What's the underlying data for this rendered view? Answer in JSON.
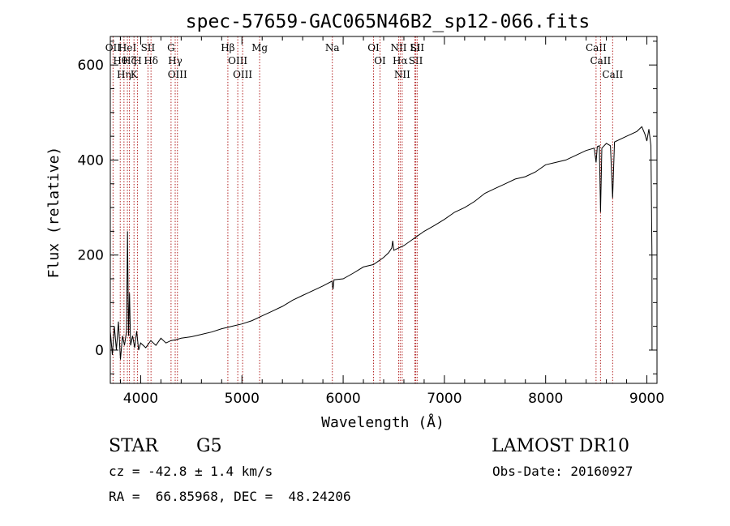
{
  "chart_data": {
    "type": "line",
    "title": "spec-57659-GAC065N46B2_sp12-066.fits",
    "xlabel": "Wavelength (Å)",
    "ylabel": "Flux (relative)",
    "xlim": [
      3700,
      9100
    ],
    "ylim": [
      -70,
      660
    ],
    "x_ticks": [
      4000,
      5000,
      6000,
      7000,
      8000,
      9000
    ],
    "x_tick_labels": [
      "4000",
      "5000",
      "6000",
      "7000",
      "8000",
      "9000"
    ],
    "y_ticks": [
      0,
      200,
      400,
      600
    ],
    "y_tick_labels": [
      "0",
      "200",
      "400",
      "600"
    ],
    "grid": false,
    "line_color": "#000000",
    "marker_color": "#b22222",
    "series": [
      {
        "x": [
          3700,
          3720,
          3740,
          3760,
          3780,
          3800,
          3820,
          3840,
          3860,
          3870,
          3880,
          3890,
          3900,
          3920,
          3940,
          3960,
          3980,
          4000,
          4050,
          4100,
          4150,
          4200,
          4250,
          4300,
          4350,
          4400,
          4500,
          4600,
          4700,
          4800,
          4900,
          5000,
          5100,
          5200,
          5300,
          5400,
          5500,
          5600,
          5700,
          5800,
          5890,
          5900,
          5910,
          6000,
          6100,
          6200,
          6300,
          6400,
          6450,
          6480,
          6490,
          6500,
          6550,
          6600,
          6700,
          6800,
          6900,
          7000,
          7100,
          7200,
          7300,
          7400,
          7500,
          7600,
          7700,
          7800,
          7900,
          8000,
          8100,
          8200,
          8300,
          8400,
          8480,
          8498,
          8510,
          8530,
          8542,
          8555,
          8600,
          8640,
          8662,
          8680,
          8700,
          8800,
          8900,
          8950,
          8980,
          9000,
          9020,
          9040,
          9050,
          9051,
          9055
        ],
        "y": [
          40,
          -10,
          50,
          0,
          60,
          -20,
          30,
          10,
          40,
          250,
          30,
          120,
          10,
          30,
          5,
          40,
          0,
          15,
          5,
          20,
          10,
          25,
          15,
          20,
          22,
          25,
          28,
          33,
          38,
          45,
          50,
          55,
          62,
          72,
          82,
          92,
          105,
          115,
          125,
          135,
          145,
          128,
          148,
          150,
          162,
          175,
          180,
          195,
          205,
          215,
          230,
          210,
          215,
          220,
          235,
          250,
          262,
          275,
          290,
          300,
          313,
          330,
          340,
          350,
          360,
          365,
          375,
          390,
          395,
          400,
          410,
          420,
          425,
          395,
          428,
          430,
          290,
          425,
          435,
          430,
          320,
          438,
          440,
          450,
          460,
          470,
          455,
          440,
          465,
          430,
          200,
          0,
          0
        ]
      }
    ],
    "line_markers": [
      {
        "x": 3727,
        "label": "OII"
      },
      {
        "x": 3798,
        "label": "Hθ"
      },
      {
        "x": 3835,
        "label": "Hη"
      },
      {
        "x": 3869,
        "label": "HeI"
      },
      {
        "x": 3889,
        "label": "Hζ"
      },
      {
        "x": 3934,
        "label": "K"
      },
      {
        "x": 3969,
        "label": "H"
      },
      {
        "x": 4072,
        "label": "SII"
      },
      {
        "x": 4102,
        "label": "Hδ"
      },
      {
        "x": 4300,
        "label": "G"
      },
      {
        "x": 4341,
        "label": "Hγ"
      },
      {
        "x": 4363,
        "label": "OIII"
      },
      {
        "x": 4861,
        "label": "Hβ"
      },
      {
        "x": 4959,
        "label": "OIII"
      },
      {
        "x": 5007,
        "label": "OIII"
      },
      {
        "x": 5175,
        "label": "Mg"
      },
      {
        "x": 5893,
        "label": "Na"
      },
      {
        "x": 6300,
        "label": "OI"
      },
      {
        "x": 6364,
        "label": "OI"
      },
      {
        "x": 6548,
        "label": "NII"
      },
      {
        "x": 6563,
        "label": "Hα"
      },
      {
        "x": 6583,
        "label": "NII"
      },
      {
        "x": 6708,
        "label": "Li"
      },
      {
        "x": 6717,
        "label": "SII"
      },
      {
        "x": 6731,
        "label": "SII"
      },
      {
        "x": 8498,
        "label": "CaII"
      },
      {
        "x": 8542,
        "label": "CaII"
      },
      {
        "x": 8662,
        "label": "CaII"
      }
    ]
  },
  "info": {
    "object_type": "STAR",
    "subclass": "G5",
    "survey": "LAMOST DR10",
    "redshift": "cz = -42.8 ± 1.4 km/s",
    "obs_date": "Obs-Date: 20160927",
    "coords": "RA =  66.85968, DEC =  48.24206"
  }
}
